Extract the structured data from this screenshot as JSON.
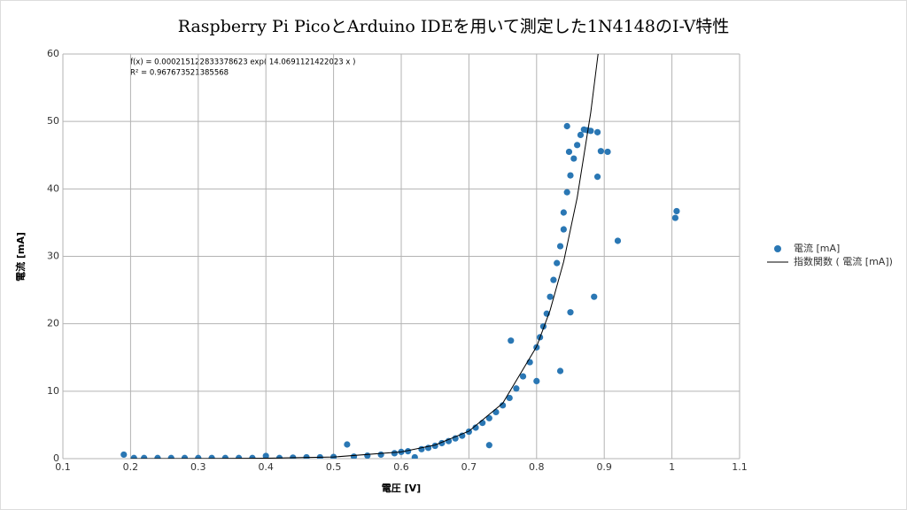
{
  "chart_data": {
    "type": "scatter",
    "title": "Raspberry Pi PicoとArduino IDEを用いて測定した1N4148のI-V特性",
    "xlabel": "電圧 [V]",
    "ylabel": "電流 [mA]",
    "annotations": [
      "f(x) = 0.000215122833378623 exp( 14.0691121422023 x )",
      "R² = 0.967673521385568"
    ],
    "xlim": [
      0.1,
      1.1
    ],
    "xticks": [
      0.1,
      0.2,
      0.3,
      0.4,
      0.5,
      0.6,
      0.7,
      0.8,
      0.9,
      1,
      1.1
    ],
    "ylim": [
      0,
      60
    ],
    "yticks": [
      0,
      10,
      20,
      30,
      40,
      50,
      60
    ],
    "grid": true,
    "legend": "right",
    "series": [
      {
        "name": "電流 [mA]",
        "color": "#2a77b4",
        "x": [
          0.19,
          0.205,
          0.22,
          0.24,
          0.26,
          0.28,
          0.3,
          0.32,
          0.34,
          0.36,
          0.38,
          0.4,
          0.42,
          0.44,
          0.46,
          0.48,
          0.5,
          0.52,
          0.53,
          0.55,
          0.57,
          0.59,
          0.6,
          0.61,
          0.62,
          0.63,
          0.64,
          0.65,
          0.66,
          0.67,
          0.68,
          0.69,
          0.7,
          0.71,
          0.72,
          0.73,
          0.73,
          0.74,
          0.75,
          0.76,
          0.762,
          0.77,
          0.78,
          0.79,
          0.8,
          0.8,
          0.805,
          0.81,
          0.815,
          0.82,
          0.825,
          0.83,
          0.835,
          0.835,
          0.84,
          0.84,
          0.845,
          0.845,
          0.848,
          0.85,
          0.85,
          0.855,
          0.86,
          0.865,
          0.87,
          0.875,
          0.88,
          0.885,
          0.89,
          0.89,
          0.895,
          0.905,
          0.92,
          1.005,
          1.007
        ],
        "values": [
          0.6,
          0.1,
          0.1,
          0.1,
          0.1,
          0.1,
          0.1,
          0.1,
          0.1,
          0.1,
          0.1,
          0.4,
          0.1,
          0.15,
          0.2,
          0.2,
          0.25,
          2.1,
          0.3,
          0.45,
          0.6,
          0.8,
          1.0,
          1.1,
          0.2,
          1.4,
          1.6,
          1.9,
          2.3,
          2.6,
          3.0,
          3.4,
          4.0,
          4.6,
          5.3,
          6.0,
          2.0,
          6.9,
          7.9,
          9.0,
          17.5,
          10.4,
          12.2,
          14.3,
          16.5,
          11.5,
          18.0,
          19.6,
          21.5,
          24.0,
          26.5,
          29.0,
          31.5,
          13.0,
          34.0,
          36.5,
          39.5,
          49.3,
          45.5,
          21.7,
          42.0,
          44.5,
          46.5,
          48.0,
          48.8,
          48.7,
          48.6,
          24.0,
          48.4,
          41.8,
          45.6,
          45.5,
          32.3,
          35.7,
          36.7
        ]
      },
      {
        "name": "指数関数 ( 電流 [mA])",
        "color": "#000000",
        "line": true,
        "x": [
          0.2,
          0.3,
          0.4,
          0.5,
          0.6,
          0.65,
          0.7,
          0.75,
          0.8,
          0.82,
          0.84,
          0.86,
          0.88,
          0.895
        ],
        "values": [
          0.0036,
          0.0147,
          0.0599,
          0.244,
          0.997,
          2.02,
          4.07,
          8.22,
          16.6,
          22.0,
          29.2,
          38.7,
          51.3,
          63.3
        ]
      }
    ]
  }
}
